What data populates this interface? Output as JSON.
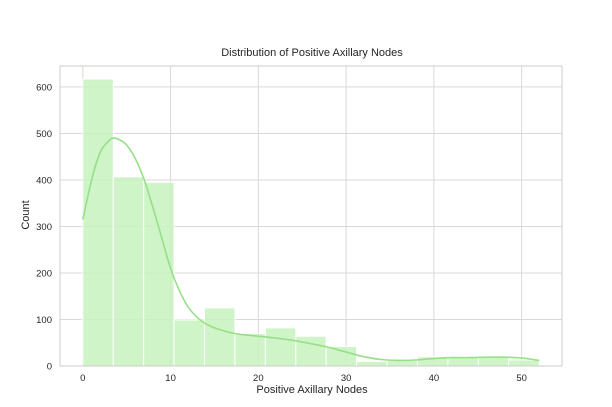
{
  "chart_data": {
    "type": "bar",
    "title": "Distribution of Positive Axillary Nodes",
    "xlabel": "Positive Axillary Nodes",
    "ylabel": "Count",
    "xlim": [
      -2.6,
      54.6
    ],
    "ylim": [
      0,
      645
    ],
    "xticks": [
      0,
      10,
      20,
      30,
      40,
      50
    ],
    "yticks": [
      0,
      100,
      200,
      300,
      400,
      500,
      600
    ],
    "grid": true,
    "bin_width": 3.47,
    "bins": [
      {
        "x0": 0.0,
        "x1": 3.47,
        "count": 617
      },
      {
        "x0": 3.47,
        "x1": 6.93,
        "count": 407
      },
      {
        "x0": 6.93,
        "x1": 10.4,
        "count": 395
      },
      {
        "x0": 10.4,
        "x1": 13.87,
        "count": 99
      },
      {
        "x0": 13.87,
        "x1": 17.33,
        "count": 125
      },
      {
        "x0": 17.33,
        "x1": 20.8,
        "count": 70
      },
      {
        "x0": 20.8,
        "x1": 24.27,
        "count": 82
      },
      {
        "x0": 24.27,
        "x1": 27.73,
        "count": 64
      },
      {
        "x0": 27.73,
        "x1": 31.2,
        "count": 42
      },
      {
        "x0": 31.2,
        "x1": 34.67,
        "count": 10
      },
      {
        "x0": 34.67,
        "x1": 38.13,
        "count": 12
      },
      {
        "x0": 38.13,
        "x1": 41.6,
        "count": 20
      },
      {
        "x0": 41.6,
        "x1": 45.07,
        "count": 20
      },
      {
        "x0": 45.07,
        "x1": 48.53,
        "count": 20
      },
      {
        "x0": 48.53,
        "x1": 52.0,
        "count": 13
      }
    ],
    "kde": {
      "x": [
        0,
        1,
        2,
        3,
        3.5,
        4,
        5,
        6,
        7,
        8,
        9,
        10,
        11,
        12,
        13,
        14,
        15,
        16,
        17,
        18,
        20,
        22,
        24,
        26,
        28,
        30,
        32,
        34,
        36,
        38,
        40,
        42,
        44,
        46,
        48,
        50,
        52
      ],
      "y": [
        315,
        400,
        460,
        485,
        490,
        488,
        475,
        445,
        400,
        340,
        275,
        210,
        162,
        127,
        105,
        91,
        82,
        76,
        71,
        68,
        64,
        60,
        55,
        48,
        40,
        30,
        20,
        14,
        12,
        13,
        16,
        18,
        18,
        19,
        19,
        17,
        12
      ]
    },
    "colors": {
      "bar_fill": "#c7f2bd",
      "bar_edge": "#ffffff",
      "kde_line": "#98df8a",
      "grid": "#d9d9d9",
      "spine": "#cccccc"
    }
  }
}
